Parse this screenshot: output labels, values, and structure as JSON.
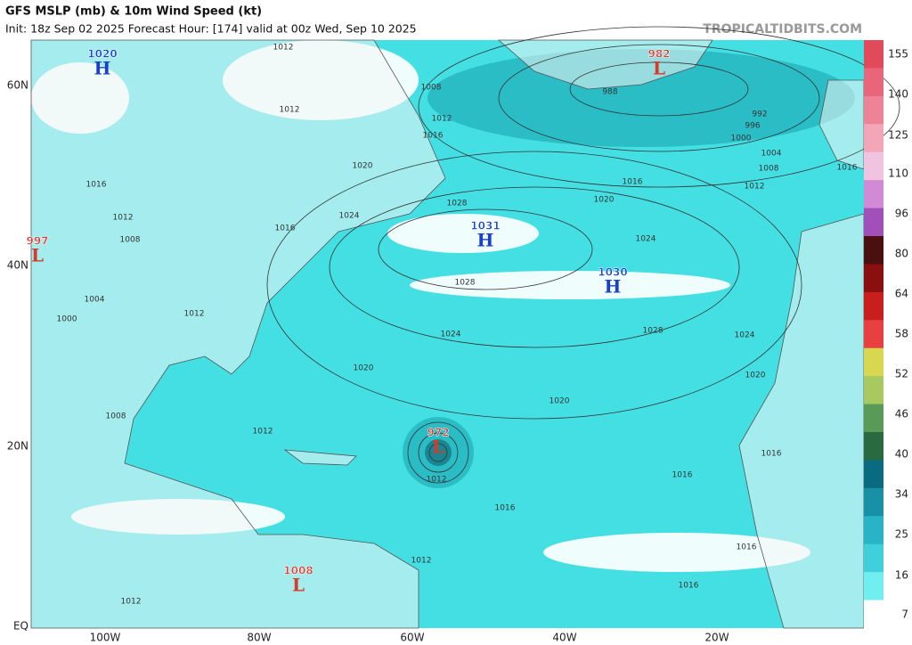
{
  "header": {
    "title": "GFS MSLP (mb) & 10m Wind Speed (kt)",
    "subtitle": "Init: 18z Sep 02 2025   Forecast Hour: [174]   valid at 00z Wed, Sep 10 2025",
    "watermark": "TROPICALTIDBITS.COM"
  },
  "axes": {
    "lat": [
      "60N",
      "40N",
      "20N",
      "EQ"
    ],
    "lon": [
      "100W",
      "80W",
      "60W",
      "40W",
      "20W"
    ]
  },
  "colorbar": {
    "labels": [
      155,
      140,
      125,
      110,
      96,
      80,
      64,
      58,
      52,
      46,
      40,
      34,
      25,
      16,
      7
    ]
  },
  "centers": [
    {
      "type": "H",
      "value": "1020"
    },
    {
      "type": "L",
      "value": "982"
    },
    {
      "type": "L",
      "value": "997"
    },
    {
      "type": "H",
      "value": "1031"
    },
    {
      "type": "H",
      "value": "1030"
    },
    {
      "type": "L",
      "value": "972"
    },
    {
      "type": "L",
      "value": "1008"
    }
  ],
  "isobars": [
    "1012",
    "1008",
    "1012",
    "1016",
    "1012",
    "1020",
    "1016",
    "1012",
    "1008",
    "1016",
    "1024",
    "1028",
    "1024",
    "1020",
    "1016",
    "1012",
    "1008",
    "1004",
    "1000",
    "996",
    "992",
    "988",
    "1028",
    "1028",
    "1024",
    "1024",
    "1020",
    "1020",
    "1020",
    "1012",
    "1004",
    "1000",
    "1008",
    "1012",
    "1012",
    "1016",
    "1016",
    "1016",
    "1016",
    "1016",
    "1012",
    "1012",
    "1016"
  ]
}
